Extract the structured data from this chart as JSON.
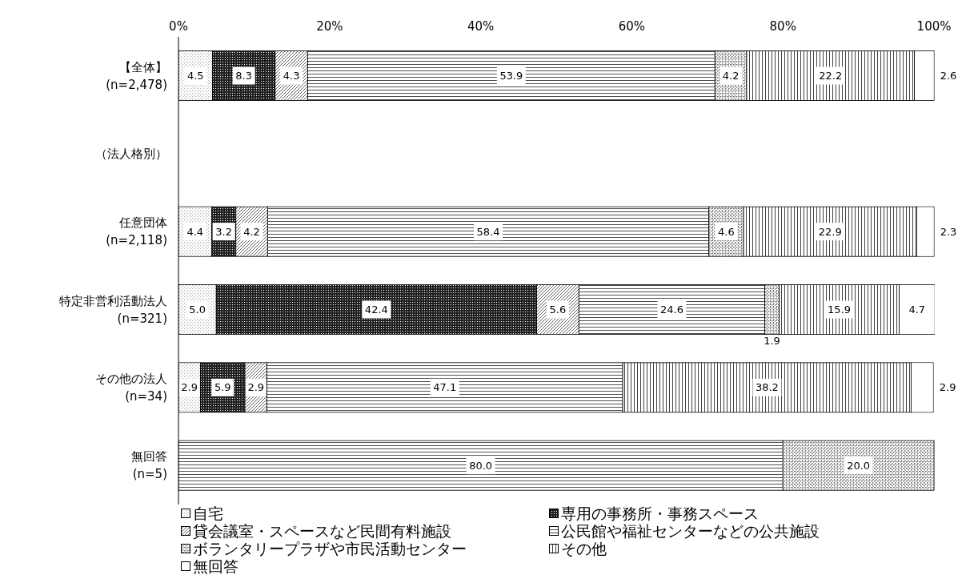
{
  "chart_data": {
    "type": "bar",
    "orientation": "horizontal",
    "stacked": true,
    "legend": "bottom",
    "categories": [
      "【全体】\n(n=2,478)",
      "（法人格別）",
      "任意団体\n(n=2,118)",
      "特定非営利活動法人\n(n=321)",
      "その他の法人\n(n=34)",
      "無回答\n(n=5)"
    ],
    "xlim": [
      0,
      100.1
    ],
    "xticks": [
      {
        "value": 0,
        "label": "0%"
      },
      {
        "value": 20,
        "label": "20%"
      },
      {
        "value": 40,
        "label": "40%"
      },
      {
        "value": 60,
        "label": "60%"
      },
      {
        "value": 80,
        "label": "80%"
      },
      {
        "value": 100,
        "label": "100%"
      }
    ],
    "series": [
      {
        "name": "自宅",
        "color": "#b0b0b0",
        "values": [
          4.5,
          null,
          4.4,
          5.0,
          2.9,
          null
        ],
        "value_labels": [
          "4.5",
          null,
          "4.4",
          "5.0",
          "2.9",
          null
        ]
      },
      {
        "name": "専用の事務所・事務スペース",
        "color": "#202020",
        "values": [
          8.3,
          null,
          3.2,
          42.4,
          5.9,
          null
        ],
        "value_labels": [
          "8.3",
          null,
          "3.2",
          "42.4",
          "5.9",
          null
        ]
      },
      {
        "name": "貸会議室・スペースなど民間有料施設",
        "color": "#606060",
        "values": [
          4.3,
          null,
          4.2,
          5.6,
          2.9,
          null
        ],
        "value_labels": [
          "4.3",
          null,
          "4.2",
          "5.6",
          "2.9",
          null
        ]
      },
      {
        "name": "公民館や福祉センターなどの公共施設",
        "color": "#505050",
        "values": [
          53.9,
          null,
          58.4,
          24.6,
          47.1,
          80.0
        ],
        "value_labels": [
          "53.9",
          null,
          "58.4",
          "24.6",
          "47.1",
          "80.0"
        ]
      },
      {
        "name": "ボランタリープラザや市民活動センター",
        "color": "#707070",
        "values": [
          4.2,
          null,
          4.6,
          1.9,
          null,
          20.0
        ],
        "value_labels": [
          "4.2",
          null,
          "4.6",
          "1.9",
          null,
          "20.0"
        ]
      },
      {
        "name": "その他",
        "color": "#404040",
        "values": [
          22.2,
          null,
          22.9,
          15.9,
          38.2,
          null
        ],
        "value_labels": [
          "22.2",
          null,
          "22.9",
          "15.9",
          "38.2",
          null
        ]
      },
      {
        "name": "無回答",
        "color": "#ffffff",
        "values": [
          2.6,
          null,
          2.3,
          4.7,
          2.9,
          null
        ],
        "value_labels": [
          "2.6",
          null,
          "2.3",
          "4.7",
          "2.9",
          null
        ]
      }
    ]
  }
}
